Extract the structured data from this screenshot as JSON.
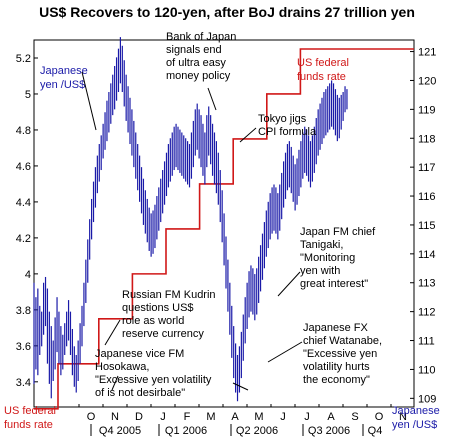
{
  "chart_data": {
    "type": "line",
    "title": "US$ Recovers to 120-yen, after BoJ drains 27 trillion yen",
    "left_axis": {
      "label_lines": [
        "Japanese",
        "yen /US$"
      ],
      "ticks": [
        "5.2",
        "5",
        "4.8",
        "4.6",
        "4.4",
        "4.2",
        "4",
        "3.8",
        "3.6",
        "3.4"
      ],
      "ylim": [
        3.26,
        5.3
      ]
    },
    "right_axis": {
      "label_lines": [
        "Japanese",
        "yen /US$"
      ],
      "ticks": [
        "121",
        "120",
        "119",
        "118",
        "117",
        "116",
        "115",
        "114",
        "113",
        "112",
        "111",
        "110",
        "109"
      ],
      "ylim": [
        108.7,
        121.4
      ]
    },
    "month_ticks": [
      "O",
      "N",
      "D",
      "J",
      "F",
      "M",
      "A",
      "M",
      "J",
      "J",
      "A",
      "S",
      "O",
      "N"
    ],
    "quarter_ticks": [
      "Q4 2005",
      "Q1 2006",
      "Q2 2006",
      "Q3 2006",
      "Q4"
    ],
    "series": [
      {
        "name": "US federal funds rate",
        "color": "#d01818",
        "label_lines": [
          "US federal",
          "funds rate"
        ],
        "bottom_label_lines": [
          "US federal",
          "funds rate"
        ],
        "steps": [
          {
            "x": 0.0,
            "y": 3.25
          },
          {
            "x": 1.0,
            "y": 3.5
          },
          {
            "x": 2.7,
            "y": 3.75
          },
          {
            "x": 4.1,
            "y": 4.0
          },
          {
            "x": 5.5,
            "y": 4.25
          },
          {
            "x": 6.9,
            "y": 4.5
          },
          {
            "x": 8.3,
            "y": 4.75
          },
          {
            "x": 9.7,
            "y": 5.0
          },
          {
            "x": 11.1,
            "y": 5.25
          },
          {
            "x": 15.0,
            "y": 5.25
          }
        ]
      },
      {
        "name": "Japanese yen /US$",
        "color": "#1a1aa8",
        "bars": [
          [
            0.0,
            113.0,
            109.5
          ],
          [
            0.08,
            112.5,
            110.0
          ],
          [
            0.16,
            112.8,
            109.8
          ],
          [
            0.24,
            112.2,
            110.5
          ],
          [
            0.32,
            112.0,
            110.8
          ],
          [
            0.4,
            113.0,
            111.2
          ],
          [
            0.48,
            113.2,
            111.5
          ],
          [
            0.56,
            112.8,
            110.2
          ],
          [
            0.64,
            112.0,
            109.5
          ],
          [
            0.72,
            111.5,
            109.0
          ],
          [
            0.8,
            111.0,
            109.6
          ],
          [
            0.88,
            111.8,
            110.0
          ],
          [
            0.96,
            112.5,
            110.6
          ],
          [
            1.04,
            112.0,
            110.2
          ],
          [
            1.12,
            111.5,
            109.8
          ],
          [
            1.2,
            111.2,
            110.0
          ],
          [
            1.28,
            111.6,
            110.5
          ],
          [
            1.36,
            112.0,
            110.8
          ],
          [
            1.44,
            112.4,
            111.0
          ],
          [
            1.52,
            112.0,
            110.5
          ],
          [
            1.6,
            111.4,
            109.8
          ],
          [
            1.68,
            110.8,
            109.4
          ],
          [
            1.76,
            110.5,
            109.2
          ],
          [
            1.84,
            111.0,
            109.6
          ],
          [
            1.92,
            111.6,
            110.2
          ],
          [
            2.0,
            112.2,
            110.8
          ],
          [
            2.08,
            113.0,
            111.5
          ],
          [
            2.16,
            113.8,
            112.3
          ],
          [
            2.24,
            114.5,
            113.0
          ],
          [
            2.32,
            115.2,
            113.8
          ],
          [
            2.4,
            115.9,
            114.5
          ],
          [
            2.48,
            116.5,
            115.1
          ],
          [
            2.56,
            117.0,
            115.6
          ],
          [
            2.64,
            117.4,
            116.1
          ],
          [
            2.72,
            117.8,
            116.5
          ],
          [
            2.8,
            118.1,
            116.9
          ],
          [
            2.88,
            118.5,
            117.3
          ],
          [
            2.96,
            118.9,
            117.6
          ],
          [
            3.04,
            119.3,
            117.9
          ],
          [
            3.12,
            119.6,
            118.2
          ],
          [
            3.2,
            119.9,
            118.5
          ],
          [
            3.28,
            120.2,
            118.8
          ],
          [
            3.36,
            120.5,
            119.0
          ],
          [
            3.44,
            120.8,
            119.3
          ],
          [
            3.52,
            121.1,
            119.6
          ],
          [
            3.6,
            121.5,
            119.9
          ],
          [
            3.68,
            121.2,
            119.6
          ],
          [
            3.76,
            120.7,
            119.1
          ],
          [
            3.84,
            120.2,
            118.6
          ],
          [
            3.92,
            119.8,
            118.2
          ],
          [
            4.0,
            119.4,
            117.8
          ],
          [
            4.08,
            119.0,
            117.4
          ],
          [
            4.16,
            118.6,
            117.0
          ],
          [
            4.24,
            118.2,
            116.6
          ],
          [
            4.32,
            117.8,
            116.2
          ],
          [
            4.4,
            117.4,
            115.8
          ],
          [
            4.48,
            117.0,
            115.4
          ],
          [
            4.56,
            116.6,
            115.0
          ],
          [
            4.64,
            116.2,
            114.7
          ],
          [
            4.72,
            115.9,
            114.4
          ],
          [
            4.8,
            115.6,
            114.1
          ],
          [
            4.88,
            115.4,
            113.9
          ],
          [
            4.96,
            115.5,
            114.0
          ],
          [
            5.04,
            115.7,
            114.2
          ],
          [
            5.12,
            116.0,
            114.5
          ],
          [
            5.2,
            116.3,
            114.8
          ],
          [
            5.28,
            116.6,
            115.1
          ],
          [
            5.36,
            116.9,
            115.4
          ],
          [
            5.44,
            117.2,
            115.7
          ],
          [
            5.52,
            117.5,
            116.0
          ],
          [
            5.6,
            117.8,
            116.3
          ],
          [
            5.68,
            118.0,
            116.5
          ],
          [
            5.76,
            118.2,
            116.7
          ],
          [
            5.84,
            118.4,
            116.9
          ],
          [
            5.92,
            118.5,
            117.0
          ],
          [
            6.0,
            118.4,
            116.9
          ],
          [
            6.08,
            118.3,
            116.8
          ],
          [
            6.16,
            118.2,
            116.7
          ],
          [
            6.24,
            118.1,
            116.6
          ],
          [
            6.32,
            118.0,
            116.5
          ],
          [
            6.4,
            117.9,
            116.4
          ],
          [
            6.48,
            117.8,
            116.3
          ],
          [
            6.56,
            118.2,
            116.6
          ],
          [
            6.64,
            118.6,
            117.0
          ],
          [
            6.72,
            119.0,
            117.4
          ],
          [
            6.8,
            119.2,
            117.6
          ],
          [
            6.88,
            119.0,
            117.3
          ],
          [
            6.96,
            118.8,
            117.0
          ],
          [
            7.04,
            118.5,
            116.7
          ],
          [
            7.12,
            118.2,
            116.4
          ],
          [
            7.2,
            118.8,
            117.0
          ],
          [
            7.28,
            119.1,
            117.4
          ],
          [
            7.36,
            118.8,
            117.1
          ],
          [
            7.44,
            118.5,
            116.7
          ],
          [
            7.52,
            118.2,
            116.4
          ],
          [
            7.6,
            117.9,
            116.1
          ],
          [
            7.68,
            117.5,
            115.7
          ],
          [
            7.76,
            116.9,
            115.1
          ],
          [
            7.84,
            116.2,
            114.4
          ],
          [
            7.92,
            115.4,
            113.6
          ],
          [
            8.0,
            114.6,
            112.8
          ],
          [
            8.08,
            113.8,
            112.0
          ],
          [
            8.16,
            113.0,
            111.2
          ],
          [
            8.24,
            112.2,
            110.4
          ],
          [
            8.32,
            111.5,
            109.7
          ],
          [
            8.4,
            110.9,
            109.2
          ],
          [
            8.48,
            110.5,
            108.9
          ],
          [
            8.56,
            110.8,
            109.2
          ],
          [
            8.64,
            111.3,
            109.7
          ],
          [
            8.72,
            111.9,
            110.3
          ],
          [
            8.8,
            112.5,
            110.9
          ],
          [
            8.88,
            113.0,
            111.4
          ],
          [
            8.96,
            113.4,
            111.8
          ],
          [
            9.04,
            113.6,
            112.0
          ],
          [
            9.12,
            113.5,
            111.9
          ],
          [
            9.2,
            113.3,
            111.7
          ],
          [
            9.28,
            113.5,
            111.9
          ],
          [
            9.36,
            113.9,
            112.3
          ],
          [
            9.44,
            114.3,
            112.7
          ],
          [
            9.52,
            114.7,
            113.1
          ],
          [
            9.6,
            115.1,
            113.5
          ],
          [
            9.68,
            115.5,
            113.9
          ],
          [
            9.76,
            115.8,
            114.2
          ],
          [
            9.84,
            116.1,
            114.5
          ],
          [
            9.92,
            116.3,
            114.7
          ],
          [
            10.0,
            116.4,
            114.8
          ],
          [
            10.08,
            116.3,
            114.7
          ],
          [
            10.16,
            116.1,
            114.5
          ],
          [
            10.24,
            116.4,
            114.8
          ],
          [
            10.32,
            116.8,
            115.2
          ],
          [
            10.4,
            117.2,
            115.6
          ],
          [
            10.48,
            117.5,
            115.9
          ],
          [
            10.56,
            117.8,
            116.2
          ],
          [
            10.64,
            117.9,
            116.3
          ],
          [
            10.72,
            117.7,
            116.1
          ],
          [
            10.8,
            117.4,
            115.8
          ],
          [
            10.88,
            117.1,
            115.5
          ],
          [
            10.96,
            117.3,
            115.7
          ],
          [
            11.04,
            117.6,
            116.0
          ],
          [
            11.12,
            117.9,
            116.3
          ],
          [
            11.2,
            118.2,
            116.6
          ],
          [
            11.28,
            118.4,
            116.8
          ],
          [
            11.36,
            118.3,
            116.7
          ],
          [
            11.44,
            118.1,
            116.5
          ],
          [
            11.52,
            117.9,
            116.3
          ],
          [
            11.6,
            118.1,
            116.5
          ],
          [
            11.68,
            118.4,
            116.8
          ],
          [
            11.76,
            118.7,
            117.1
          ],
          [
            11.84,
            119.0,
            117.4
          ],
          [
            11.92,
            119.2,
            117.6
          ],
          [
            12.0,
            119.4,
            117.8
          ],
          [
            12.08,
            119.6,
            118.0
          ],
          [
            12.16,
            119.7,
            118.1
          ],
          [
            12.24,
            119.8,
            118.2
          ],
          [
            12.32,
            119.9,
            118.3
          ],
          [
            12.4,
            120.0,
            118.4
          ],
          [
            12.48,
            119.9,
            118.3
          ],
          [
            12.56,
            119.7,
            118.1
          ],
          [
            12.64,
            119.5,
            117.9
          ],
          [
            12.72,
            119.4,
            118.0
          ],
          [
            12.8,
            119.5,
            118.3
          ],
          [
            12.88,
            119.6,
            118.6
          ],
          [
            12.96,
            119.8,
            118.9
          ],
          [
            13.04,
            119.7,
            119.0
          ]
        ]
      }
    ],
    "annotations": [
      {
        "lines": [
          "Bank of Japan",
          "signals end",
          "of ultra easy",
          "money policy"
        ]
      },
      {
        "lines": [
          "Tokyo jigs",
          "CPI formula"
        ]
      },
      {
        "lines": [
          "Japan FM chief",
          "Tanigaki,",
          "\"Monitoring",
          "yen with",
          "great interest\""
        ]
      },
      {
        "lines": [
          "Russian FM Kudrin",
          "questions US$",
          "role as world",
          "reserve currency"
        ]
      },
      {
        "lines": [
          "Japanese FX",
          "chief Watanabe,",
          "\"Excessive yen",
          "volatility hurts",
          "the economy\""
        ]
      },
      {
        "lines": [
          "Japanese vice FM",
          "Hosokawa,",
          "\"Excessive yen volatility",
          "of is not desirbale\""
        ]
      }
    ]
  }
}
